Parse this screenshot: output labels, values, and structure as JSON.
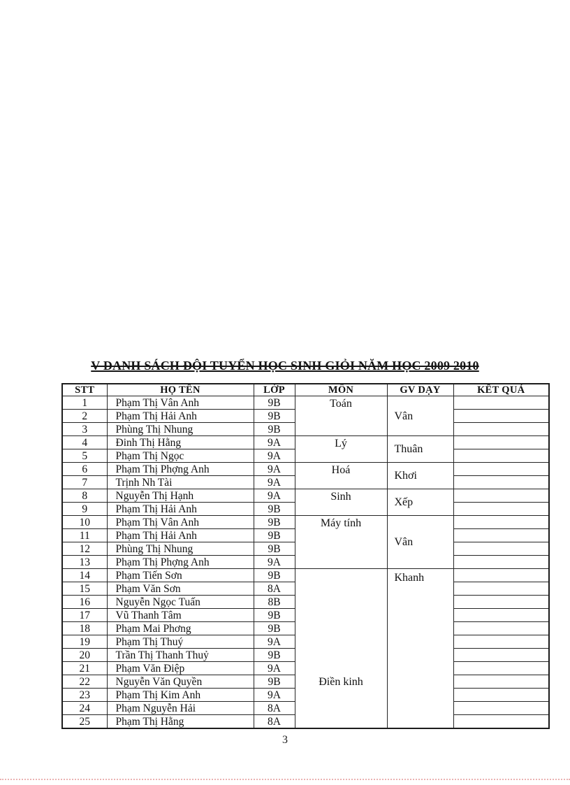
{
  "page": {
    "title": "V DANH SÁCH ĐỘI TUYỂN HỌC SINH GIỎI  NĂM HỌC 2009 2010",
    "page_number": "3"
  },
  "table": {
    "headers": [
      "STT",
      "HỌ TÊN",
      "LỚP",
      "MÔN",
      "GV DẠY",
      "KẾT QUẢ"
    ],
    "rows": [
      {
        "stt": "1",
        "name": "Phạm Thị Vân Anh",
        "lop": "9B"
      },
      {
        "stt": "2",
        "name": "Phạm Thị Hải Anh",
        "lop": "9B"
      },
      {
        "stt": "3",
        "name": "Phùng Thị Nhung",
        "lop": "9B"
      },
      {
        "stt": "4",
        "name": "Đinh Thị Hằng",
        "lop": "9A"
      },
      {
        "stt": "5",
        "name": "Phạm Thị Ngọc",
        "lop": "9A"
      },
      {
        "stt": "6",
        "name": "Phạm Thị Phợng  Anh",
        "lop": "9A"
      },
      {
        "stt": "7",
        "name": "Trịnh Nh  Tài",
        "lop": "9A"
      },
      {
        "stt": "8",
        "name": "Nguyễn Thị Hạnh",
        "lop": "9A"
      },
      {
        "stt": "9",
        "name": "Phạm Thị Hải Anh",
        "lop": "9B"
      },
      {
        "stt": "10",
        "name": "Phạm Thị Vân Anh",
        "lop": "9B"
      },
      {
        "stt": "11",
        "name": "Phạm Thị Hải Anh",
        "lop": "9B"
      },
      {
        "stt": "12",
        "name": "Phùng Thị Nhung",
        "lop": "9B"
      },
      {
        "stt": "13",
        "name": "Phạm Thị Phợng  Anh",
        "lop": "9A"
      },
      {
        "stt": "14",
        "name": "Phạm Tiến Sơn",
        "lop": "9B"
      },
      {
        "stt": "15",
        "name": "Phạm Văn Sơn",
        "lop": "8A"
      },
      {
        "stt": "16",
        "name": "Nguyễn Ngọc Tuấn",
        "lop": "8B"
      },
      {
        "stt": "17",
        "name": "Vũ Thanh Tâm",
        "lop": "9B"
      },
      {
        "stt": "18",
        "name": "Phạm Mai Phơng",
        "lop": "9B"
      },
      {
        "stt": "19",
        "name": "Phạm Thị Thuý",
        "lop": "9A"
      },
      {
        "stt": "20",
        "name": "Trần Thị Thanh Thuỷ",
        "lop": "9B"
      },
      {
        "stt": "21",
        "name": "Phạm Văn Điệp",
        "lop": "9A"
      },
      {
        "stt": "22",
        "name": "Nguyễn Văn Quyền",
        "lop": "9B"
      },
      {
        "stt": "23",
        "name": "Phạm Thị Kim Anh",
        "lop": "9A"
      },
      {
        "stt": "24",
        "name": "Phạm Nguyễn Hải",
        "lop": "8A"
      },
      {
        "stt": "25",
        "name": "Phạm Thị Hằng",
        "lop": "8A"
      }
    ],
    "subject_groups": [
      {
        "subject": "Toán",
        "teacher": "Vân",
        "rows": 3
      },
      {
        "subject": "Lý",
        "teacher": "Thuân",
        "rows": 2
      },
      {
        "subject": "Hoá",
        "teacher": "Khơi",
        "rows": 2
      },
      {
        "subject": "Sinh",
        "teacher": "Xếp",
        "rows": 2
      },
      {
        "subject": "Máy tính",
        "teacher": "Vân",
        "rows": 4
      },
      {
        "subject": "Điền kinh",
        "teacher": "Khanh",
        "rows": 12
      }
    ]
  }
}
